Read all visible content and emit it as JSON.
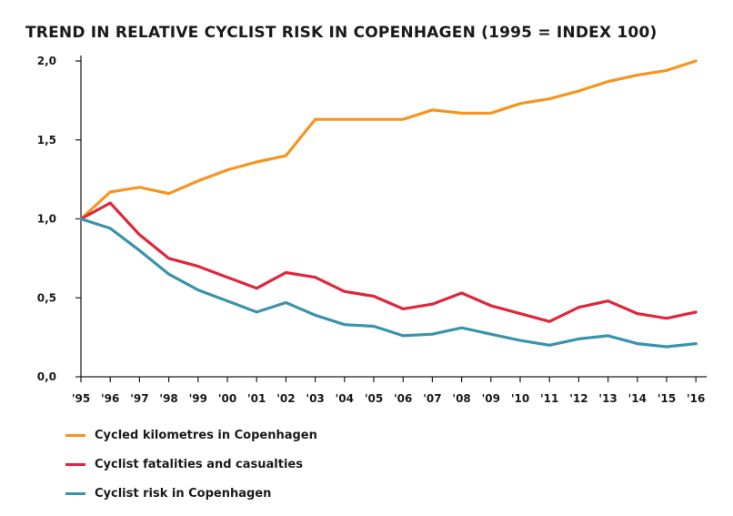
{
  "chart_data": {
    "type": "line",
    "title": "TREND IN RELATIVE CYCLIST RISK IN COPENHAGEN (1995 = INDEX 100)",
    "xlabel": "",
    "ylabel": "",
    "categories": [
      "'95",
      "'96",
      "'97",
      "'98",
      "'99",
      "'00",
      "'01",
      "'02",
      "'03",
      "'04",
      "'05",
      "'06",
      "'07",
      "'08",
      "'09",
      "'10",
      "'11",
      "'12",
      "'13",
      "'14",
      "'15",
      "'16"
    ],
    "y_ticks": [
      "0,0",
      "0,5",
      "1,0",
      "1,5",
      "2,0"
    ],
    "ylim": [
      0,
      2.0
    ],
    "grid": false,
    "legend_position": "bottom-left",
    "series": [
      {
        "name": "Cycled kilometres in Copenhagen",
        "color": "#f7941d",
        "values": [
          1.0,
          1.17,
          1.2,
          1.16,
          1.24,
          1.31,
          1.36,
          1.4,
          1.63,
          1.63,
          1.63,
          1.63,
          1.69,
          1.67,
          1.67,
          1.73,
          1.76,
          1.81,
          1.87,
          1.91,
          1.94,
          2.0
        ]
      },
      {
        "name": "Cyclist fatalities and casualties",
        "color": "#e0263b",
        "values": [
          1.0,
          1.1,
          0.9,
          0.75,
          0.7,
          0.63,
          0.56,
          0.66,
          0.63,
          0.54,
          0.51,
          0.43,
          0.46,
          0.53,
          0.45,
          0.4,
          0.35,
          0.44,
          0.48,
          0.4,
          0.37,
          0.41
        ]
      },
      {
        "name": "Cyclist risk in Copenhagen",
        "color": "#3a93ac",
        "values": [
          1.0,
          0.94,
          0.8,
          0.65,
          0.55,
          0.48,
          0.41,
          0.47,
          0.39,
          0.33,
          0.32,
          0.26,
          0.27,
          0.31,
          0.27,
          0.23,
          0.2,
          0.24,
          0.26,
          0.21,
          0.19,
          0.21
        ]
      }
    ]
  }
}
